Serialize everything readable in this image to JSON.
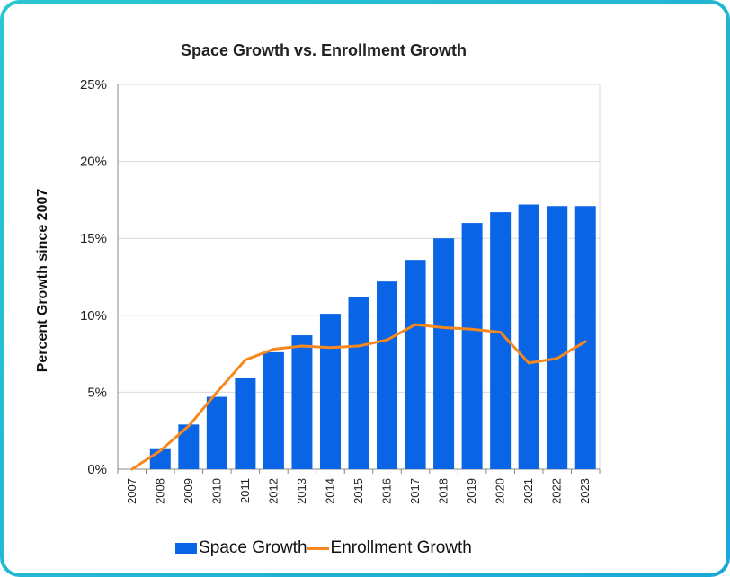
{
  "colors": {
    "frame": "#1fb4d6",
    "bar": "#0a64e6",
    "line": "#f5891f",
    "grid": "#d9d9d9",
    "axis": "#888888"
  },
  "chart_data": {
    "type": "bar",
    "title": "Space Growth vs. Enrollment Growth",
    "ylabel": "Percent Growth since 2007",
    "xlabel": "",
    "ylim": [
      0,
      25
    ],
    "yticks": [
      "0%",
      "5%",
      "10%",
      "15%",
      "20%",
      "25%"
    ],
    "grid": true,
    "legend_position": "bottom",
    "categories": [
      "2007",
      "2008",
      "2009",
      "2010",
      "2011",
      "2012",
      "2013",
      "2014",
      "2015",
      "2016",
      "2017",
      "2018",
      "2019",
      "2020",
      "2021",
      "2022",
      "2023"
    ],
    "series": [
      {
        "name": "Space Growth",
        "type": "bar",
        "values": [
          0,
          1.3,
          2.9,
          4.7,
          5.9,
          7.6,
          8.7,
          10.1,
          11.2,
          12.2,
          13.6,
          15.0,
          16.0,
          16.7,
          17.2,
          17.1,
          17.1
        ]
      },
      {
        "name": "Enrollment Growth",
        "type": "line",
        "values": [
          0,
          1.2,
          2.8,
          5.0,
          7.1,
          7.8,
          8.0,
          7.9,
          8.0,
          8.4,
          9.4,
          9.2,
          9.1,
          8.9,
          6.9,
          7.2,
          8.3
        ]
      }
    ]
  }
}
